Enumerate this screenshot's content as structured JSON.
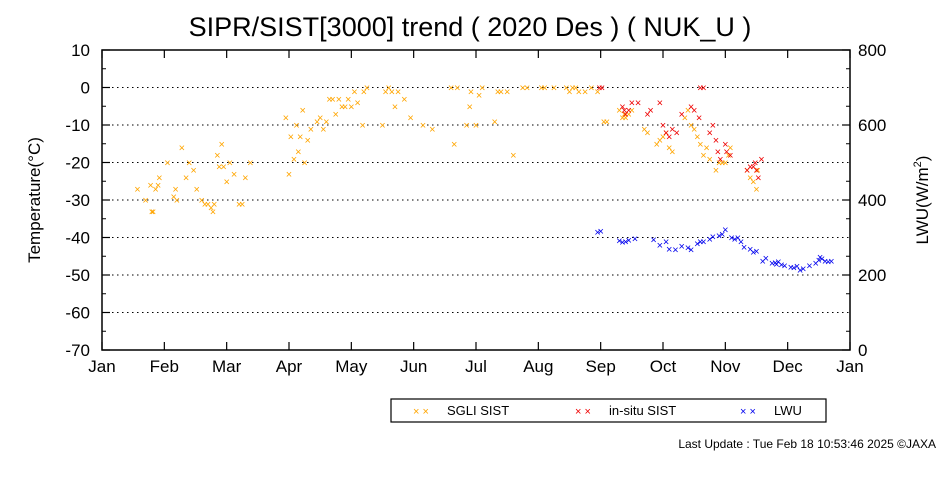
{
  "chart_data": {
    "type": "scatter",
    "title": "SIPR/SIST[3000] trend ( 2020 Des ) ( NUK_U )",
    "ylabel": "Temperature(°C)",
    "y2label": "LWU(W/m²)",
    "y2label_main": "LWU(W/m",
    "y2label_sup": "2",
    "y2label_close": ")",
    "ylim": [
      -70,
      10
    ],
    "y2lim": [
      0,
      800
    ],
    "y_ticks": [
      10,
      0,
      -10,
      -20,
      -30,
      -40,
      -50,
      -60,
      -70
    ],
    "y2_ticks": [
      800,
      600,
      400,
      200,
      0
    ],
    "x_ticks": [
      "Jan",
      "Feb",
      "Mar",
      "Apr",
      "May",
      "Jun",
      "Jul",
      "Aug",
      "Sep",
      "Oct",
      "Nov",
      "Dec",
      "Jan"
    ],
    "grid": "horizontal-dotted",
    "legend_placement": "bottom-right",
    "marker": "×",
    "series": [
      {
        "name": "SGLI SIST",
        "color": "#FFA500",
        "axis": "left",
        "points": [
          [
            0.57,
            -27
          ],
          [
            0.7,
            -30
          ],
          [
            0.78,
            -26
          ],
          [
            0.8,
            -33
          ],
          [
            0.82,
            -33
          ],
          [
            0.86,
            -27
          ],
          [
            0.9,
            -26
          ],
          [
            0.92,
            -24
          ],
          [
            1.05,
            -20
          ],
          [
            1.15,
            -29
          ],
          [
            1.18,
            -27
          ],
          [
            1.2,
            -30
          ],
          [
            1.28,
            -16
          ],
          [
            1.35,
            -24
          ],
          [
            1.4,
            -20
          ],
          [
            1.47,
            -22
          ],
          [
            1.52,
            -27
          ],
          [
            1.6,
            -30
          ],
          [
            1.65,
            -31
          ],
          [
            1.7,
            -31
          ],
          [
            1.75,
            -32
          ],
          [
            1.78,
            -33
          ],
          [
            1.8,
            -31
          ],
          [
            1.85,
            -18
          ],
          [
            1.88,
            -21
          ],
          [
            1.92,
            -15
          ],
          [
            1.95,
            -21
          ],
          [
            2.0,
            -25
          ],
          [
            2.05,
            -20
          ],
          [
            2.12,
            -23
          ],
          [
            2.2,
            -31
          ],
          [
            2.25,
            -31
          ],
          [
            2.3,
            -24
          ],
          [
            2.38,
            -20
          ],
          [
            2.95,
            -8
          ],
          [
            3.0,
            -23
          ],
          [
            3.03,
            -13
          ],
          [
            3.08,
            -19
          ],
          [
            3.12,
            -10
          ],
          [
            3.15,
            -17
          ],
          [
            3.18,
            -13
          ],
          [
            3.22,
            -6
          ],
          [
            3.25,
            -20
          ],
          [
            3.3,
            -14
          ],
          [
            3.35,
            -11
          ],
          [
            3.45,
            -9
          ],
          [
            3.5,
            -8
          ],
          [
            3.55,
            -11
          ],
          [
            3.6,
            -9
          ],
          [
            3.65,
            -3
          ],
          [
            3.7,
            -3
          ],
          [
            3.75,
            -7
          ],
          [
            3.8,
            -3
          ],
          [
            3.85,
            -5
          ],
          [
            3.9,
            -5
          ],
          [
            3.95,
            -3
          ],
          [
            4.0,
            -5
          ],
          [
            4.05,
            -1
          ],
          [
            4.1,
            -4
          ],
          [
            4.18,
            -10
          ],
          [
            4.2,
            -1
          ],
          [
            4.25,
            0
          ],
          [
            4.5,
            -10
          ],
          [
            4.55,
            -1
          ],
          [
            4.6,
            0
          ],
          [
            4.65,
            -1
          ],
          [
            4.7,
            -5
          ],
          [
            4.75,
            -1
          ],
          [
            4.85,
            -3
          ],
          [
            4.95,
            -8
          ],
          [
            5.15,
            -10
          ],
          [
            5.3,
            -11
          ],
          [
            5.6,
            0
          ],
          [
            5.65,
            -15
          ],
          [
            5.7,
            0
          ],
          [
            5.85,
            -10
          ],
          [
            5.9,
            -5
          ],
          [
            5.92,
            -1
          ],
          [
            6.0,
            -10
          ],
          [
            6.05,
            -2
          ],
          [
            6.1,
            0
          ],
          [
            6.3,
            -9
          ],
          [
            6.35,
            -1
          ],
          [
            6.4,
            -1
          ],
          [
            6.5,
            -1
          ],
          [
            6.6,
            -18
          ],
          [
            6.75,
            0
          ],
          [
            6.82,
            0
          ],
          [
            7.05,
            0
          ],
          [
            7.1,
            0
          ],
          [
            7.25,
            0
          ],
          [
            7.45,
            0
          ],
          [
            7.5,
            -1
          ],
          [
            7.55,
            0
          ],
          [
            7.6,
            0
          ],
          [
            7.65,
            -1
          ],
          [
            7.75,
            -1
          ],
          [
            7.85,
            0
          ],
          [
            7.95,
            -1
          ],
          [
            8.05,
            -9
          ],
          [
            8.1,
            -9
          ],
          [
            8.3,
            -6
          ],
          [
            8.35,
            -8
          ],
          [
            8.38,
            -7
          ],
          [
            8.4,
            -8
          ],
          [
            8.45,
            -7
          ],
          [
            8.5,
            -6
          ],
          [
            8.7,
            -11
          ],
          [
            8.75,
            -12
          ],
          [
            8.9,
            -15
          ],
          [
            8.95,
            -14
          ],
          [
            9.0,
            -13
          ],
          [
            9.05,
            -12
          ],
          [
            9.1,
            -16
          ],
          [
            9.15,
            -17
          ],
          [
            9.35,
            -8
          ],
          [
            9.4,
            -6
          ],
          [
            9.45,
            -10
          ],
          [
            9.5,
            -11
          ],
          [
            9.55,
            -13
          ],
          [
            9.6,
            -15
          ],
          [
            9.65,
            -18
          ],
          [
            9.7,
            -16
          ],
          [
            9.75,
            -19
          ],
          [
            9.85,
            -22
          ],
          [
            9.9,
            -20
          ],
          [
            9.95,
            -20
          ],
          [
            10.0,
            -20
          ],
          [
            10.05,
            -18
          ],
          [
            10.08,
            -16
          ],
          [
            10.35,
            -22
          ],
          [
            10.4,
            -24
          ],
          [
            10.45,
            -25
          ],
          [
            10.5,
            -27
          ],
          [
            10.52,
            -22
          ]
        ]
      },
      {
        "name": "in-situ SIST",
        "color": "#EE0000",
        "axis": "left",
        "points": [
          [
            7.98,
            0
          ],
          [
            8.02,
            0
          ],
          [
            8.35,
            -5
          ],
          [
            8.38,
            -6
          ],
          [
            8.4,
            -7
          ],
          [
            8.45,
            -6
          ],
          [
            8.5,
            -4
          ],
          [
            8.6,
            -4
          ],
          [
            8.75,
            -7
          ],
          [
            8.8,
            -6
          ],
          [
            8.95,
            -4
          ],
          [
            9.0,
            -10
          ],
          [
            9.05,
            -12
          ],
          [
            9.1,
            -13
          ],
          [
            9.15,
            -11
          ],
          [
            9.22,
            -12
          ],
          [
            9.3,
            -7
          ],
          [
            9.45,
            -5
          ],
          [
            9.5,
            -6
          ],
          [
            9.58,
            -8
          ],
          [
            9.6,
            0
          ],
          [
            9.65,
            0
          ],
          [
            9.75,
            -12
          ],
          [
            9.8,
            -10
          ],
          [
            9.85,
            -14
          ],
          [
            9.88,
            -17
          ],
          [
            9.92,
            -19
          ],
          [
            10.0,
            -15
          ],
          [
            10.02,
            -17
          ],
          [
            10.08,
            -18
          ],
          [
            10.35,
            -22
          ],
          [
            10.4,
            -21
          ],
          [
            10.45,
            -21
          ],
          [
            10.48,
            -20
          ],
          [
            10.5,
            -22
          ],
          [
            10.53,
            -24
          ],
          [
            10.58,
            -19
          ]
        ]
      },
      {
        "name": "LWU",
        "color": "#0000EE",
        "axis": "right",
        "points": [
          [
            7.95,
            315
          ],
          [
            8.0,
            318
          ],
          [
            8.3,
            292
          ],
          [
            8.35,
            288
          ],
          [
            8.4,
            290
          ],
          [
            8.45,
            294
          ],
          [
            8.55,
            298
          ],
          [
            8.85,
            295
          ],
          [
            8.95,
            280
          ],
          [
            9.05,
            290
          ],
          [
            9.1,
            270
          ],
          [
            9.2,
            268
          ],
          [
            9.3,
            278
          ],
          [
            9.4,
            274
          ],
          [
            9.45,
            268
          ],
          [
            9.55,
            284
          ],
          [
            9.6,
            290
          ],
          [
            9.65,
            290
          ],
          [
            9.75,
            296
          ],
          [
            9.8,
            303
          ],
          [
            9.9,
            306
          ],
          [
            9.95,
            310
          ],
          [
            10.0,
            322
          ],
          [
            10.1,
            300
          ],
          [
            10.15,
            296
          ],
          [
            10.2,
            300
          ],
          [
            10.25,
            290
          ],
          [
            10.3,
            275
          ],
          [
            10.4,
            270
          ],
          [
            10.45,
            262
          ],
          [
            10.5,
            264
          ],
          [
            10.6,
            238
          ],
          [
            10.65,
            245
          ],
          [
            10.75,
            232
          ],
          [
            10.8,
            234
          ],
          [
            10.82,
            230
          ],
          [
            10.85,
            236
          ],
          [
            10.9,
            228
          ],
          [
            10.95,
            226
          ],
          [
            11.05,
            222
          ],
          [
            11.1,
            220
          ],
          [
            11.15,
            224
          ],
          [
            11.2,
            213
          ],
          [
            11.25,
            218
          ],
          [
            11.35,
            225
          ],
          [
            11.45,
            232
          ],
          [
            11.5,
            240
          ],
          [
            11.52,
            248
          ],
          [
            11.55,
            244
          ],
          [
            11.6,
            238
          ],
          [
            11.65,
            236
          ],
          [
            11.7,
            238
          ]
        ]
      }
    ]
  },
  "footer": {
    "last_update": "Last Update : Tue Feb 18 10:53:46 2025  ©JAXA"
  }
}
